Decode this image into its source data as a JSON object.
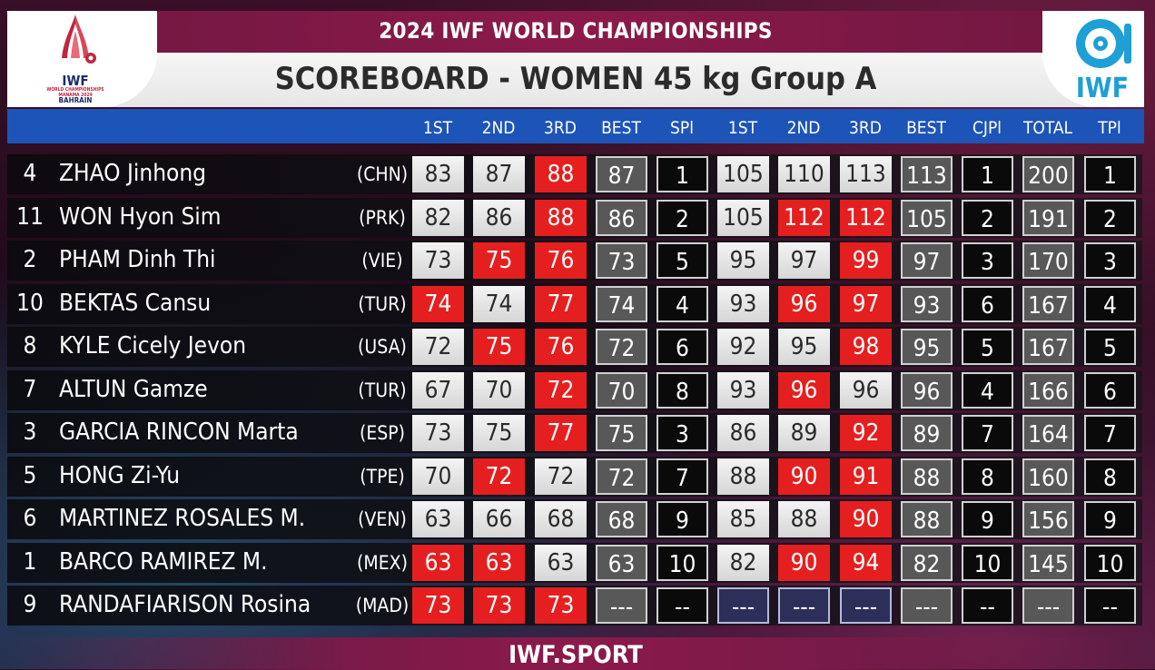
{
  "header": {
    "event_title": "2024 IWF WORLD CHAMPIONSHIPS",
    "board_title": "SCOREBOARD - WOMEN 45 kg Group A",
    "logo_left": {
      "main": "IWF",
      "sub": "WORLD CHAMPIONSHIPS MANAMA 2024",
      "city": "BAHRAIN"
    },
    "logo_right": {
      "label": "IWF"
    }
  },
  "columns": [
    "1ST",
    "2ND",
    "3RD",
    "BEST",
    "SPl",
    "1ST",
    "2ND",
    "3RD",
    "BEST",
    "CJPl",
    "TOTAL",
    "TPl"
  ],
  "colors": {
    "good_lift": "#e0e0e0",
    "failed_lift": "#e51f1f",
    "best": "#585858",
    "place": "#0a0a0a",
    "pending": "#2b2f5a",
    "header_bar": "#1d54b8",
    "brand_maroon": "#8b1a4a"
  },
  "rows": [
    {
      "lot": "4",
      "name": "ZHAO Jinhong",
      "nation": "(CHN)",
      "cells": [
        [
          "83",
          "good"
        ],
        [
          "87",
          "good"
        ],
        [
          "88",
          "fail"
        ],
        [
          "87",
          "best"
        ],
        [
          "1",
          "place"
        ],
        [
          "105",
          "good"
        ],
        [
          "110",
          "good"
        ],
        [
          "113",
          "good"
        ],
        [
          "113",
          "best"
        ],
        [
          "1",
          "place"
        ],
        [
          "200",
          "best"
        ],
        [
          "1",
          "place"
        ]
      ]
    },
    {
      "lot": "11",
      "name": "WON Hyon Sim",
      "nation": "(PRK)",
      "cells": [
        [
          "82",
          "good"
        ],
        [
          "86",
          "good"
        ],
        [
          "88",
          "fail"
        ],
        [
          "86",
          "best"
        ],
        [
          "2",
          "place"
        ],
        [
          "105",
          "good"
        ],
        [
          "112",
          "fail"
        ],
        [
          "112",
          "fail"
        ],
        [
          "105",
          "best"
        ],
        [
          "2",
          "place"
        ],
        [
          "191",
          "best"
        ],
        [
          "2",
          "place"
        ]
      ]
    },
    {
      "lot": "2",
      "name": "PHAM Dinh Thi",
      "nation": "(VIE)",
      "cells": [
        [
          "73",
          "good"
        ],
        [
          "75",
          "fail"
        ],
        [
          "76",
          "fail"
        ],
        [
          "73",
          "best"
        ],
        [
          "5",
          "place"
        ],
        [
          "95",
          "good"
        ],
        [
          "97",
          "good"
        ],
        [
          "99",
          "fail"
        ],
        [
          "97",
          "best"
        ],
        [
          "3",
          "place"
        ],
        [
          "170",
          "best"
        ],
        [
          "3",
          "place"
        ]
      ]
    },
    {
      "lot": "10",
      "name": "BEKTAS Cansu",
      "nation": "(TUR)",
      "cells": [
        [
          "74",
          "fail"
        ],
        [
          "74",
          "good"
        ],
        [
          "77",
          "fail"
        ],
        [
          "74",
          "best"
        ],
        [
          "4",
          "place"
        ],
        [
          "93",
          "good"
        ],
        [
          "96",
          "fail"
        ],
        [
          "97",
          "fail"
        ],
        [
          "93",
          "best"
        ],
        [
          "6",
          "place"
        ],
        [
          "167",
          "best"
        ],
        [
          "4",
          "place"
        ]
      ]
    },
    {
      "lot": "8",
      "name": "KYLE Cicely Jevon",
      "nation": "(USA)",
      "cells": [
        [
          "72",
          "good"
        ],
        [
          "75",
          "fail"
        ],
        [
          "76",
          "fail"
        ],
        [
          "72",
          "best"
        ],
        [
          "6",
          "place"
        ],
        [
          "92",
          "good"
        ],
        [
          "95",
          "good"
        ],
        [
          "98",
          "fail"
        ],
        [
          "95",
          "best"
        ],
        [
          "5",
          "place"
        ],
        [
          "167",
          "best"
        ],
        [
          "5",
          "place"
        ]
      ]
    },
    {
      "lot": "7",
      "name": "ALTUN Gamze",
      "nation": "(TUR)",
      "cells": [
        [
          "67",
          "good"
        ],
        [
          "70",
          "good"
        ],
        [
          "72",
          "fail"
        ],
        [
          "70",
          "best"
        ],
        [
          "8",
          "place"
        ],
        [
          "93",
          "good"
        ],
        [
          "96",
          "fail"
        ],
        [
          "96",
          "good"
        ],
        [
          "96",
          "best"
        ],
        [
          "4",
          "place"
        ],
        [
          "166",
          "best"
        ],
        [
          "6",
          "place"
        ]
      ]
    },
    {
      "lot": "3",
      "name": "GARCIA RINCON Marta",
      "nation": "(ESP)",
      "cells": [
        [
          "73",
          "good"
        ],
        [
          "75",
          "good"
        ],
        [
          "77",
          "fail"
        ],
        [
          "75",
          "best"
        ],
        [
          "3",
          "place"
        ],
        [
          "86",
          "good"
        ],
        [
          "89",
          "good"
        ],
        [
          "92",
          "fail"
        ],
        [
          "89",
          "best"
        ],
        [
          "7",
          "place"
        ],
        [
          "164",
          "best"
        ],
        [
          "7",
          "place"
        ]
      ]
    },
    {
      "lot": "5",
      "name": "HONG Zi-Yu",
      "nation": "(TPE)",
      "cells": [
        [
          "70",
          "good"
        ],
        [
          "72",
          "fail"
        ],
        [
          "72",
          "good"
        ],
        [
          "72",
          "best"
        ],
        [
          "7",
          "place"
        ],
        [
          "88",
          "good"
        ],
        [
          "90",
          "fail"
        ],
        [
          "91",
          "fail"
        ],
        [
          "88",
          "best"
        ],
        [
          "8",
          "place"
        ],
        [
          "160",
          "best"
        ],
        [
          "8",
          "place"
        ]
      ]
    },
    {
      "lot": "6",
      "name": "MARTINEZ ROSALES M.",
      "nation": "(VEN)",
      "cells": [
        [
          "63",
          "good"
        ],
        [
          "66",
          "good"
        ],
        [
          "68",
          "good"
        ],
        [
          "68",
          "best"
        ],
        [
          "9",
          "place"
        ],
        [
          "85",
          "good"
        ],
        [
          "88",
          "good"
        ],
        [
          "90",
          "fail"
        ],
        [
          "88",
          "best"
        ],
        [
          "9",
          "place"
        ],
        [
          "156",
          "best"
        ],
        [
          "9",
          "place"
        ]
      ]
    },
    {
      "lot": "1",
      "name": "BARCO RAMIREZ M.",
      "nation": "(MEX)",
      "cells": [
        [
          "63",
          "fail"
        ],
        [
          "63",
          "fail"
        ],
        [
          "63",
          "good"
        ],
        [
          "63",
          "best"
        ],
        [
          "10",
          "place"
        ],
        [
          "82",
          "good"
        ],
        [
          "90",
          "fail"
        ],
        [
          "94",
          "fail"
        ],
        [
          "82",
          "best"
        ],
        [
          "10",
          "place"
        ],
        [
          "145",
          "best"
        ],
        [
          "10",
          "place"
        ]
      ]
    },
    {
      "lot": "9",
      "name": "RANDAFIARISON Rosina",
      "nation": "(MAD)",
      "cells": [
        [
          "73",
          "fail"
        ],
        [
          "73",
          "fail"
        ],
        [
          "73",
          "fail"
        ],
        [
          "---",
          "best"
        ],
        [
          "--",
          "place"
        ],
        [
          "---",
          "pending"
        ],
        [
          "---",
          "pending"
        ],
        [
          "---",
          "pending"
        ],
        [
          "---",
          "best"
        ],
        [
          "--",
          "place"
        ],
        [
          "---",
          "best"
        ],
        [
          "--",
          "place"
        ]
      ]
    }
  ],
  "footer": {
    "text": "IWF.SPORT"
  }
}
